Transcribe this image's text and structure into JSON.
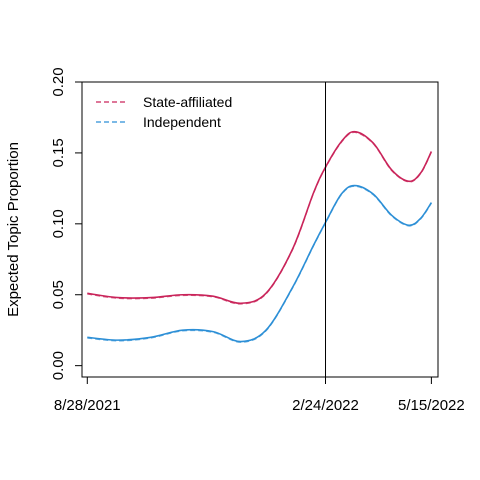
{
  "chart_data": {
    "type": "line",
    "title": "",
    "xlabel": "",
    "ylabel": "Expected Topic Proportion",
    "x_tick_labels": [
      "8/28/2021",
      "2/24/2022",
      "5/15/2022"
    ],
    "x_ticks": [
      "2021-08-28",
      "2022-02-24",
      "2022-05-15"
    ],
    "xlim": [
      "2021-08-24",
      "2022-05-20"
    ],
    "ylim": [
      -0.008,
      0.2
    ],
    "y_ticks": [
      0.0,
      0.05,
      0.1,
      0.15,
      0.2
    ],
    "y_tick_labels": [
      "0.00",
      "0.05",
      "0.10",
      "0.15",
      "0.20"
    ],
    "grid": false,
    "legend_position": "top-left",
    "vertical_line": {
      "x": "2022-02-24"
    },
    "line_style": "dashed over solid",
    "series": [
      {
        "name": "State-affiliated",
        "color": "#c9245a",
        "points": [
          [
            "2021-08-28",
            0.051
          ],
          [
            "2021-09-20",
            0.048
          ],
          [
            "2021-10-15",
            0.048
          ],
          [
            "2021-11-08",
            0.05
          ],
          [
            "2021-12-01",
            0.049
          ],
          [
            "2021-12-22",
            0.044
          ],
          [
            "2022-01-10",
            0.051
          ],
          [
            "2022-01-30",
            0.082
          ],
          [
            "2022-02-15",
            0.122
          ],
          [
            "2022-02-24",
            0.14
          ],
          [
            "2022-03-08",
            0.158
          ],
          [
            "2022-03-18",
            0.165
          ],
          [
            "2022-04-01",
            0.157
          ],
          [
            "2022-04-15",
            0.138
          ],
          [
            "2022-04-28",
            0.13
          ],
          [
            "2022-05-07",
            0.136
          ],
          [
            "2022-05-15",
            0.151
          ]
        ]
      },
      {
        "name": "Independent",
        "color": "#2c8fd6",
        "points": [
          [
            "2021-08-28",
            0.02
          ],
          [
            "2021-09-20",
            0.018
          ],
          [
            "2021-10-15",
            0.02
          ],
          [
            "2021-11-08",
            0.025
          ],
          [
            "2021-12-01",
            0.024
          ],
          [
            "2021-12-22",
            0.017
          ],
          [
            "2022-01-10",
            0.025
          ],
          [
            "2022-01-30",
            0.055
          ],
          [
            "2022-02-15",
            0.085
          ],
          [
            "2022-02-24",
            0.101
          ],
          [
            "2022-03-08",
            0.121
          ],
          [
            "2022-03-18",
            0.127
          ],
          [
            "2022-04-01",
            0.121
          ],
          [
            "2022-04-15",
            0.106
          ],
          [
            "2022-04-28",
            0.099
          ],
          [
            "2022-05-07",
            0.104
          ],
          [
            "2022-05-15",
            0.115
          ]
        ]
      }
    ]
  }
}
